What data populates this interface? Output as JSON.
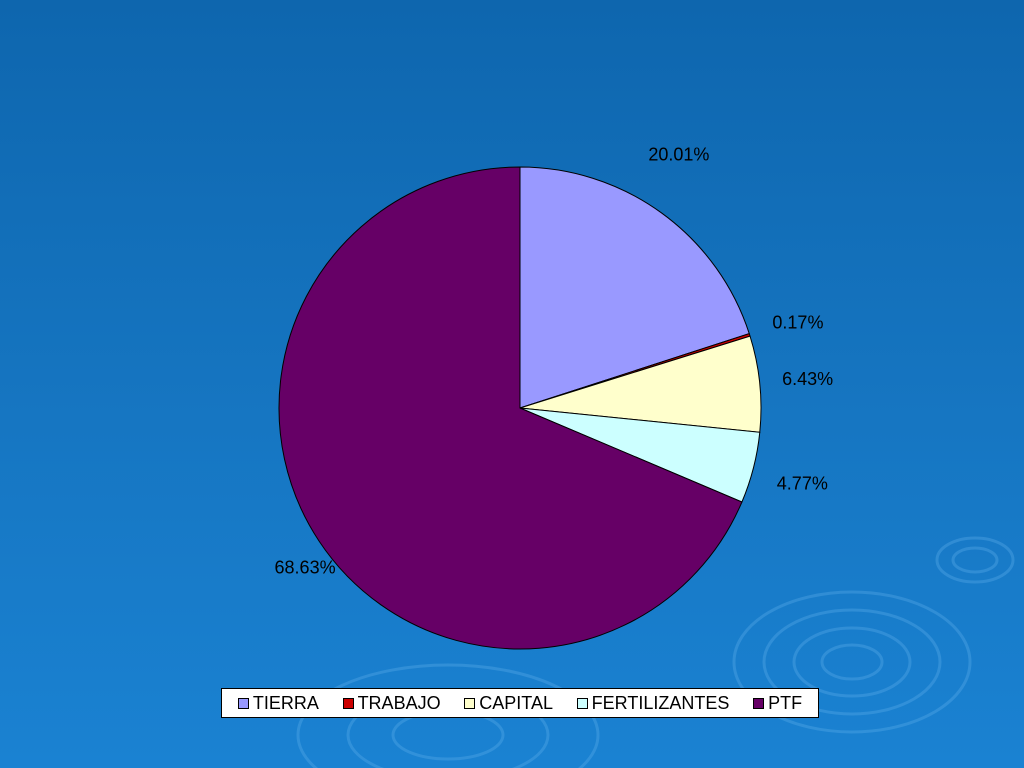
{
  "chart_data": {
    "type": "pie",
    "categories": [
      "TIERRA",
      "TRABAJO",
      "CAPITAL",
      "FERTILIZANTES",
      "PTF"
    ],
    "values": [
      20.01,
      0.17,
      6.43,
      4.77,
      68.63
    ],
    "labels": [
      "20.01%",
      "0.17%",
      "6.43%",
      "4.77%",
      "68.63%"
    ],
    "colors": [
      "#9999ff",
      "#cc0000",
      "#ffffcc",
      "#ccffff",
      "#660066"
    ],
    "start": "12 o'clock",
    "direction": "clockwise",
    "legend_position": "bottom"
  }
}
